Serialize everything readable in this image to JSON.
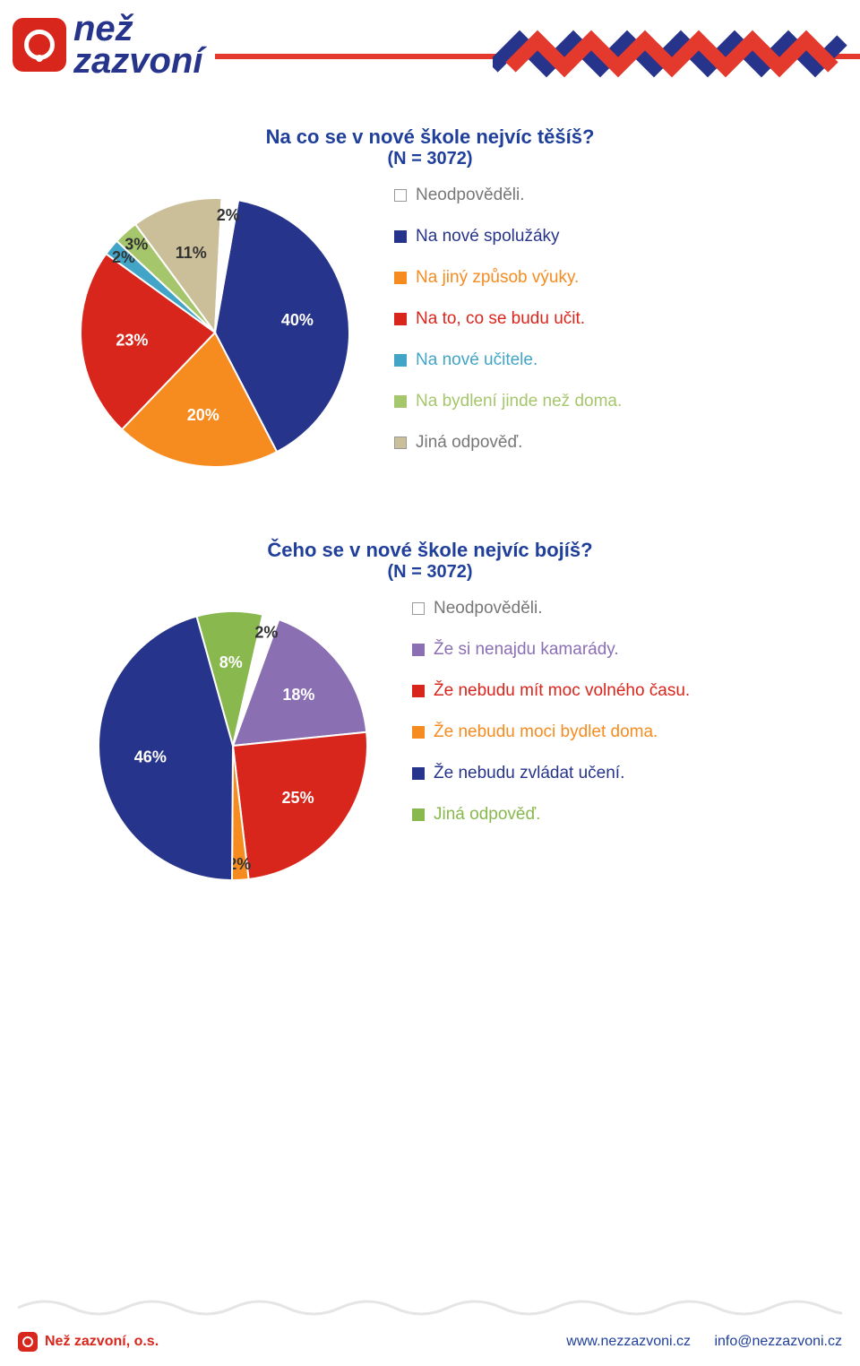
{
  "brand": {
    "line1": "než",
    "line2": "zazvoní",
    "name_color": "#27348b",
    "mark_color": "#d9261c"
  },
  "header": {
    "stripe_color": "#e33a2d",
    "zigzag_colors": [
      "#27348b",
      "#e33a2d"
    ]
  },
  "chart1": {
    "type": "pie",
    "title": "Na co se v nové škole nejvíc těšíš?",
    "subtitle": "(N = 3072)",
    "title_color": "#1f3f9a",
    "background_color": "#ffffff",
    "legend_items": [
      {
        "label": "Neodpověděli.",
        "color": "#ffffff",
        "border": "#999"
      },
      {
        "label": "Na nové spolužáky",
        "color": "#27348b",
        "border": "#27348b"
      },
      {
        "label": "Na jiný způsob výuky.",
        "color": "#f68b1f",
        "border": "#f68b1f"
      },
      {
        "label": "Na to, co se budu učit.",
        "color": "#d9261c",
        "border": "#d9261c"
      },
      {
        "label": "Na nové učitele.",
        "color": "#42a5c7",
        "border": "#42a5c7"
      },
      {
        "label": "Na bydlení jinde než doma.",
        "color": "#a6c66c",
        "border": "#a6c66c"
      },
      {
        "label": "Jiná odpověď.",
        "color": "#cbbf9a",
        "border": "#999"
      }
    ],
    "slices": [
      {
        "label": "40%",
        "value": 40,
        "color": "#27348b"
      },
      {
        "label": "20%",
        "value": 20,
        "color": "#f68b1f"
      },
      {
        "label": "23%",
        "value": 23,
        "color": "#d9261c"
      },
      {
        "label": "2%",
        "value": 2,
        "color": "#42a5c7"
      },
      {
        "label": "3%",
        "value": 3,
        "color": "#a6c66c"
      },
      {
        "label": "11%",
        "value": 11,
        "color": "#cbbf9a"
      },
      {
        "label": "2%",
        "value": 2,
        "color": "#ffffff"
      }
    ]
  },
  "chart2": {
    "type": "pie",
    "title": "Čeho se v nové škole nejvíc bojíš?",
    "subtitle": "(N = 3072)",
    "title_color": "#1f3f9a",
    "background_color": "#ffffff",
    "legend_items": [
      {
        "label": "Neodpověděli.",
        "color": "#ffffff",
        "border": "#999"
      },
      {
        "label": "Že si nenajdu kamarády.",
        "color": "#8b6fb3",
        "border": "#8b6fb3"
      },
      {
        "label": "Že nebudu mít moc volného času.",
        "color": "#d9261c",
        "border": "#d9261c"
      },
      {
        "label": "Že nebudu moci bydlet doma.",
        "color": "#f68b1f",
        "border": "#f68b1f"
      },
      {
        "label": "Že nebudu zvládat učení.",
        "color": "#27348b",
        "border": "#27348b"
      },
      {
        "label": "Jiná odpověď.",
        "color": "#88b84e",
        "border": "#88b84e"
      }
    ],
    "slices": [
      {
        "label": "18%",
        "value": 18,
        "color": "#8b6fb3"
      },
      {
        "label": "25%",
        "value": 25,
        "color": "#d9261c"
      },
      {
        "label": "2%",
        "value": 2,
        "color": "#f68b1f"
      },
      {
        "label": "46%",
        "value": 46,
        "color": "#27348b"
      },
      {
        "label": "8%",
        "value": 8,
        "color": "#88b84e"
      },
      {
        "label": "2%",
        "value": 2,
        "color": "#ffffff"
      }
    ],
    "start_angle_deg": -70
  },
  "footer": {
    "org": "Než zazvoní, o.s.",
    "url": "www.nezzazvoni.cz",
    "email": "info@nezzazvoni.cz",
    "url_color": "#1f3f9a",
    "wave_color": "#e5e5e5"
  }
}
